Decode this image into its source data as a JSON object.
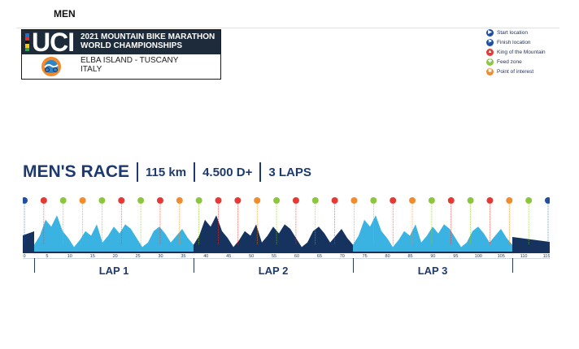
{
  "header": {
    "category": "MEN"
  },
  "logo": {
    "brand": "UCI",
    "title_line1": "2021 MOUNTAIN BIKE MARATHON",
    "title_line2": "WORLD CHAMPIONSHIPS",
    "location_line1": "ELBA ISLAND - TUSCANY",
    "location_line2": "ITALY",
    "rainbow_colors": [
      "#1f6fd1",
      "#e52b2b",
      "#111111",
      "#f2c81b",
      "#2ea84a"
    ]
  },
  "legend": {
    "items": [
      {
        "label": "Start location",
        "icon": "play-icon",
        "color": "#1f4ea3"
      },
      {
        "label": "Finish location",
        "icon": "finish-flag-icon",
        "color": "#1f4ea3"
      },
      {
        "label": "King of the Mountain",
        "icon": "mountain-icon",
        "color": "#e53935"
      },
      {
        "label": "Feed zone",
        "icon": "feed-icon",
        "color": "#8cc63f"
      },
      {
        "label": "Point of interest",
        "icon": "star-icon",
        "color": "#f28a2e"
      }
    ]
  },
  "race": {
    "title": "MEN'S RACE",
    "distance": "115 km",
    "elevation": "4.500 D+",
    "laps": "3 LAPS"
  },
  "profile": {
    "colors": {
      "dark": "#16325e",
      "light": "#3ab3e3",
      "axis": "#16325e"
    },
    "km_ticks": [
      "0",
      "5",
      "10",
      "15",
      "20",
      "25",
      "30",
      "35",
      "40",
      "45",
      "50",
      "55",
      "60",
      "65",
      "70",
      "75",
      "80",
      "85",
      "90",
      "95",
      "100",
      "105",
      "110",
      "115"
    ],
    "lap_labels": [
      "LAP 1",
      "LAP 2",
      "LAP 3"
    ]
  }
}
